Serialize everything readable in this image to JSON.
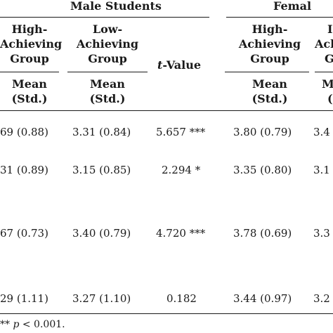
{
  "table": {
    "group_headers": {
      "male": "Male Students",
      "female": "Femal"
    },
    "columns": {
      "male_high": [
        "High-",
        "Achieving",
        "Group"
      ],
      "male_low": [
        "Low-",
        "Achieving",
        "Group"
      ],
      "t_value_italic": "t",
      "t_value_rest": "-Value",
      "female_high": [
        "High-",
        "Achieving",
        "Group"
      ],
      "female_low_partial": [
        "I",
        "Ach",
        "G"
      ]
    },
    "stat_headers": {
      "male_high": [
        "Mean",
        "(Std.)"
      ],
      "male_low": [
        "Mean",
        "(Std.)"
      ],
      "female_high": [
        "Mean",
        "(Std.)"
      ],
      "female_low_partial": [
        "M",
        "("
      ]
    },
    "rows": [
      {
        "male_high": "69 (0.88)",
        "male_low": "3.31 (0.84)",
        "t_value": "5.657 ***",
        "female_high": "3.80 (0.79)",
        "female_low": "3.4"
      },
      {
        "male_high": "31 (0.89)",
        "male_low": "3.15 (0.85)",
        "t_value": "2.294 *",
        "female_high": "3.35 (0.80)",
        "female_low": "3.1"
      },
      {
        "male_high": "67 (0.73)",
        "male_low": "3.40 (0.79)",
        "t_value": "4.720 ***",
        "female_high": "3.78 (0.69)",
        "female_low": "3.3"
      },
      {
        "male_high": "29 (1.11)",
        "male_low": "3.27 (1.10)",
        "t_value": "0.182",
        "female_high": "3.44 (0.97)",
        "female_low": "3.2"
      }
    ]
  },
  "footnote": {
    "prefix": "**",
    "p_italic": "p",
    "rest": " < 0.001."
  }
}
